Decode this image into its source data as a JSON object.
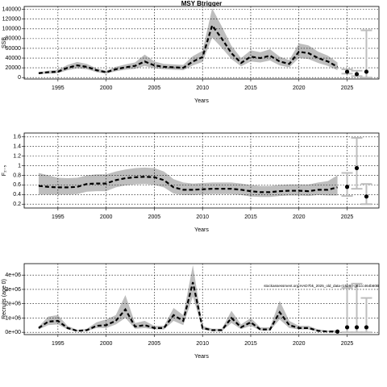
{
  "chart_data": [
    {
      "type": "line",
      "title": "MSY Btrigger",
      "xlabel": "Years",
      "ylabel": "SSB",
      "x": [
        1993,
        1994,
        1995,
        1996,
        1997,
        1998,
        1999,
        2000,
        2001,
        2002,
        2003,
        2004,
        2005,
        2006,
        2007,
        2008,
        2009,
        2010,
        2011,
        2012,
        2013,
        2014,
        2015,
        2016,
        2017,
        2018,
        2019,
        2020,
        2021,
        2022,
        2023,
        2024
      ],
      "values": [
        9000,
        11000,
        12000,
        20000,
        25000,
        22000,
        15000,
        11000,
        17000,
        21000,
        24000,
        33000,
        25000,
        22000,
        21000,
        20000,
        33000,
        42000,
        107000,
        80000,
        50000,
        30000,
        43000,
        40000,
        45000,
        33000,
        28000,
        53000,
        50000,
        40000,
        33000,
        22000
      ],
      "lower": [
        7000,
        8000,
        9000,
        15000,
        19000,
        17000,
        11000,
        8000,
        13000,
        16000,
        18000,
        24000,
        19000,
        17000,
        16000,
        15000,
        25000,
        32000,
        82000,
        61000,
        38000,
        23000,
        33000,
        31000,
        35000,
        25000,
        21000,
        40000,
        38000,
        30000,
        24000,
        15000
      ],
      "upper": [
        11000,
        14000,
        16000,
        26000,
        32000,
        28000,
        19000,
        14000,
        22000,
        27000,
        31000,
        47000,
        33000,
        28000,
        27000,
        26000,
        44000,
        55000,
        142000,
        105000,
        65000,
        40000,
        56000,
        52000,
        58000,
        43000,
        36000,
        70000,
        66000,
        53000,
        45000,
        31000
      ],
      "forecast": {
        "x": [
          2025,
          2026,
          2027
        ],
        "values": [
          12000,
          7000,
          12000
        ],
        "lower": [
          8000,
          3000,
          0
        ],
        "upper": [
          17000,
          14000,
          97000
        ]
      },
      "xlim": [
        1991.5,
        2028.3
      ],
      "ylim": [
        -3000,
        146000
      ],
      "xticks": [
        1995,
        2000,
        2005,
        2010,
        2015,
        2020,
        2025
      ],
      "yticks": [
        0,
        20000,
        40000,
        60000,
        80000,
        100000,
        120000,
        140000
      ],
      "grid": true,
      "color": "#000000",
      "band_color": "#bebebe",
      "bar_color": "#bebebe"
    },
    {
      "type": "line",
      "xlabel": "Years",
      "ylabel": "F₂₋₅",
      "x": [
        1993,
        1994,
        1995,
        1996,
        1997,
        1998,
        1999,
        2000,
        2001,
        2002,
        2003,
        2004,
        2005,
        2006,
        2007,
        2008,
        2009,
        2010,
        2011,
        2012,
        2013,
        2014,
        2015,
        2016,
        2017,
        2018,
        2019,
        2020,
        2021,
        2022,
        2023,
        2024
      ],
      "values": [
        0.58,
        0.56,
        0.55,
        0.55,
        0.56,
        0.62,
        0.63,
        0.63,
        0.7,
        0.74,
        0.76,
        0.77,
        0.76,
        0.7,
        0.55,
        0.5,
        0.5,
        0.51,
        0.52,
        0.52,
        0.52,
        0.5,
        0.47,
        0.45,
        0.45,
        0.47,
        0.48,
        0.48,
        0.47,
        0.5,
        0.5,
        0.55
      ],
      "lower": [
        0.4,
        0.4,
        0.4,
        0.4,
        0.41,
        0.46,
        0.47,
        0.47,
        0.55,
        0.59,
        0.61,
        0.62,
        0.6,
        0.55,
        0.42,
        0.39,
        0.39,
        0.4,
        0.41,
        0.41,
        0.41,
        0.39,
        0.36,
        0.35,
        0.35,
        0.37,
        0.38,
        0.38,
        0.37,
        0.39,
        0.38,
        0.38
      ],
      "upper": [
        0.85,
        0.8,
        0.75,
        0.74,
        0.75,
        0.8,
        0.82,
        0.82,
        0.88,
        0.92,
        0.95,
        0.96,
        0.95,
        0.88,
        0.72,
        0.65,
        0.63,
        0.64,
        0.65,
        0.65,
        0.65,
        0.63,
        0.6,
        0.58,
        0.58,
        0.6,
        0.61,
        0.61,
        0.61,
        0.65,
        0.68,
        0.8
      ],
      "forecast": {
        "x": [
          2025,
          2026,
          2027
        ],
        "values": [
          0.56,
          0.95,
          0.36
        ],
        "lower": [
          0.37,
          0.52,
          0.2
        ],
        "upper": [
          0.85,
          1.58,
          0.62
        ]
      },
      "xlim": [
        1991.5,
        2028.3
      ],
      "ylim": [
        0.12,
        1.68
      ],
      "xticks": [
        1995,
        2000,
        2005,
        2010,
        2015,
        2020,
        2025
      ],
      "yticks": [
        0.2,
        0.4,
        0.6,
        0.8,
        1,
        1.2,
        1.4,
        1.6
      ],
      "grid": true,
      "color": "#000000",
      "band_color": "#bebebe",
      "bar_color": "#bebebe"
    },
    {
      "type": "line",
      "xlabel": "Years",
      "ylabel": "Recruits (age 0)",
      "annotation": "stockassessment.org-HAD7bk_2025_old_data-r15660-g81cc464b60B",
      "x": [
        1993,
        1994,
        1995,
        1996,
        1997,
        1998,
        1999,
        2000,
        2001,
        2002,
        2003,
        2004,
        2005,
        2006,
        2007,
        2008,
        2009,
        2010,
        2011,
        2012,
        2013,
        2014,
        2015,
        2016,
        2017,
        2018,
        2019,
        2020,
        2021,
        2022,
        2023,
        2024
      ],
      "values": [
        300000,
        750000,
        800000,
        300000,
        100000,
        150000,
        450000,
        500000,
        800000,
        1600000,
        400000,
        500000,
        300000,
        300000,
        1200000,
        800000,
        3500000,
        300000,
        150000,
        150000,
        1000000,
        350000,
        700000,
        200000,
        200000,
        1400000,
        500000,
        300000,
        300000,
        100000,
        50000,
        50000
      ],
      "lower": [
        200000,
        500000,
        550000,
        200000,
        60000,
        90000,
        300000,
        300000,
        550000,
        1000000,
        250000,
        300000,
        200000,
        200000,
        800000,
        500000,
        2500000,
        200000,
        90000,
        90000,
        650000,
        220000,
        450000,
        120000,
        120000,
        900000,
        300000,
        200000,
        200000,
        50000,
        20000,
        10000
      ],
      "upper": [
        400000,
        1100000,
        1200000,
        450000,
        170000,
        250000,
        700000,
        900000,
        1200000,
        2600000,
        650000,
        800000,
        450000,
        450000,
        1700000,
        1200000,
        4700000,
        450000,
        250000,
        250000,
        1500000,
        550000,
        1000000,
        350000,
        350000,
        2200000,
        800000,
        450000,
        450000,
        200000,
        120000,
        150000
      ],
      "forecast": {
        "x": [
          2024,
          2025,
          2026,
          2027
        ],
        "values": [
          50000,
          350000,
          350000,
          350000
        ],
        "lower": [
          null,
          0,
          0,
          0
        ],
        "upper": [
          null,
          3100000,
          3400000,
          2400000
        ]
      },
      "xlim": [
        1991.5,
        2028.3
      ],
      "ylim": [
        -160000,
        4800000
      ],
      "xticks": [
        1995,
        2000,
        2005,
        2010,
        2015,
        2020,
        2025
      ],
      "yticks": [
        {
          "value": 0,
          "label": "0e+00"
        },
        {
          "value": 1000000,
          "label": "1e+06"
        },
        {
          "value": 2000000,
          "label": "2e+06"
        },
        {
          "value": 3000000,
          "label": "3e+06"
        },
        {
          "value": 4000000,
          "label": "4e+06"
        }
      ],
      "grid": true,
      "color": "#000000",
      "band_color": "#bebebe",
      "bar_color": "#bebebe"
    }
  ]
}
